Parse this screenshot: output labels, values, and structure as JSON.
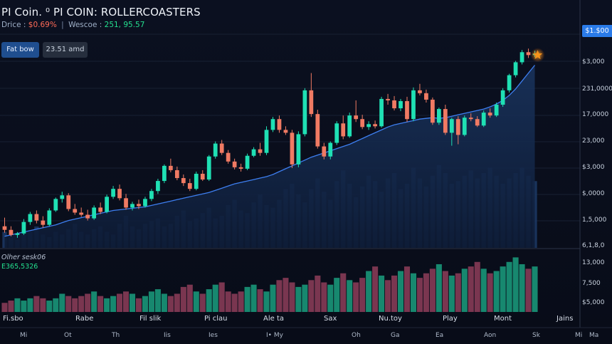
{
  "header": {
    "title": "PI Coin. ⁰ PI COIN: ROLLERCOASTERS",
    "stat_label": "Drice :",
    "stat_change": "$0.69%",
    "stat_sep": "|",
    "stat_label2": "Wescoe :",
    "stat_value2": "251, 95.57"
  },
  "toolbar": {
    "primary_label": "Fat bow",
    "secondary_label": "23.51 amd"
  },
  "price_tag": "$1.$00",
  "volume_panel": {
    "title": "Olher sesk06",
    "value": "E365,5326"
  },
  "y_axis_labels": [
    "$3,000",
    "231,0000",
    "17,0000",
    "23,000",
    "$3,000",
    "$,0000",
    "1,5,000",
    "6,1,8,0"
  ],
  "volume_axis_labels": [
    "13,000",
    "7,500",
    "$5,000"
  ],
  "x_axis_labels": [
    "Fi.sbo",
    "Rabe",
    "Fil slik",
    "Pi clau",
    "Ale ta",
    "Sax",
    "Nu.toy",
    "Play",
    "Mont",
    "Jains"
  ],
  "x_axis_labels2": [
    "Mi",
    "Ot",
    "Th",
    "Iis",
    "Ies",
    "I• My",
    "Oh",
    "Ga",
    "Ea",
    "Aon",
    "Sk",
    "Mi",
    "Ma"
  ],
  "colors": {
    "up": "#1fe0b4",
    "down": "#f07a63",
    "ma_line": "#3d7ef0",
    "volume_area": "#1c3a66",
    "volume_up": "#17886f",
    "volume_down": "#7a3650",
    "marker": "#f7931a"
  },
  "chart_data": {
    "type": "candlestick",
    "candles": [
      {
        "o": 9.0,
        "h": 10.2,
        "l": 8.1,
        "c": 8.5
      },
      {
        "o": 8.5,
        "h": 9.0,
        "l": 7.6,
        "c": 7.8
      },
      {
        "o": 7.8,
        "h": 8.2,
        "l": 7.4,
        "c": 8.0
      },
      {
        "o": 8.0,
        "h": 10.0,
        "l": 7.8,
        "c": 9.6
      },
      {
        "o": 9.6,
        "h": 11.0,
        "l": 9.2,
        "c": 10.7
      },
      {
        "o": 10.7,
        "h": 11.2,
        "l": 9.4,
        "c": 9.8
      },
      {
        "o": 9.8,
        "h": 10.4,
        "l": 8.8,
        "c": 9.2
      },
      {
        "o": 9.2,
        "h": 11.5,
        "l": 9.0,
        "c": 11.2
      },
      {
        "o": 11.2,
        "h": 13.0,
        "l": 11.0,
        "c": 12.8
      },
      {
        "o": 12.8,
        "h": 13.8,
        "l": 12.3,
        "c": 13.3
      },
      {
        "o": 13.3,
        "h": 13.6,
        "l": 11.1,
        "c": 11.4
      },
      {
        "o": 11.4,
        "h": 12.1,
        "l": 10.6,
        "c": 10.9
      },
      {
        "o": 10.9,
        "h": 11.6,
        "l": 10.3,
        "c": 10.6
      },
      {
        "o": 10.6,
        "h": 11.3,
        "l": 9.8,
        "c": 10.1
      },
      {
        "o": 10.1,
        "h": 11.9,
        "l": 9.9,
        "c": 11.6
      },
      {
        "o": 11.6,
        "h": 12.3,
        "l": 10.7,
        "c": 11.0
      },
      {
        "o": 11.0,
        "h": 13.4,
        "l": 10.8,
        "c": 13.1
      },
      {
        "o": 13.1,
        "h": 14.6,
        "l": 12.8,
        "c": 14.2
      },
      {
        "o": 14.2,
        "h": 14.8,
        "l": 12.6,
        "c": 12.9
      },
      {
        "o": 12.9,
        "h": 13.5,
        "l": 11.3,
        "c": 11.6
      },
      {
        "o": 11.6,
        "h": 12.4,
        "l": 11.2,
        "c": 12.1
      },
      {
        "o": 12.1,
        "h": 12.7,
        "l": 11.4,
        "c": 11.8
      },
      {
        "o": 11.8,
        "h": 13.1,
        "l": 11.6,
        "c": 12.8
      },
      {
        "o": 12.8,
        "h": 14.2,
        "l": 12.5,
        "c": 13.9
      },
      {
        "o": 13.9,
        "h": 15.6,
        "l": 13.5,
        "c": 15.3
      },
      {
        "o": 15.3,
        "h": 17.6,
        "l": 15.0,
        "c": 17.4
      },
      {
        "o": 17.4,
        "h": 18.4,
        "l": 16.5,
        "c": 16.8
      },
      {
        "o": 16.8,
        "h": 17.3,
        "l": 15.4,
        "c": 15.7
      },
      {
        "o": 15.7,
        "h": 16.2,
        "l": 14.6,
        "c": 15.0
      },
      {
        "o": 15.0,
        "h": 15.6,
        "l": 13.9,
        "c": 14.2
      },
      {
        "o": 14.2,
        "h": 16.6,
        "l": 14.0,
        "c": 16.3
      },
      {
        "o": 16.3,
        "h": 16.8,
        "l": 15.3,
        "c": 15.5
      },
      {
        "o": 15.5,
        "h": 18.9,
        "l": 15.3,
        "c": 18.7
      },
      {
        "o": 18.7,
        "h": 20.8,
        "l": 18.4,
        "c": 20.5
      },
      {
        "o": 20.5,
        "h": 21.0,
        "l": 18.9,
        "c": 19.2
      },
      {
        "o": 19.2,
        "h": 19.6,
        "l": 17.7,
        "c": 18.0
      },
      {
        "o": 18.0,
        "h": 18.4,
        "l": 16.9,
        "c": 17.2
      },
      {
        "o": 17.2,
        "h": 17.7,
        "l": 16.6,
        "c": 17.0
      },
      {
        "o": 17.0,
        "h": 19.1,
        "l": 16.8,
        "c": 18.8
      },
      {
        "o": 18.8,
        "h": 20.0,
        "l": 18.6,
        "c": 19.7
      },
      {
        "o": 19.7,
        "h": 20.6,
        "l": 18.8,
        "c": 19.2
      },
      {
        "o": 19.2,
        "h": 22.9,
        "l": 18.9,
        "c": 22.4
      },
      {
        "o": 22.4,
        "h": 24.2,
        "l": 22.1,
        "c": 23.9
      },
      {
        "o": 23.9,
        "h": 24.4,
        "l": 22.0,
        "c": 22.4
      },
      {
        "o": 22.4,
        "h": 22.9,
        "l": 21.7,
        "c": 22.0
      },
      {
        "o": 22.0,
        "h": 22.4,
        "l": 17.1,
        "c": 17.6
      },
      {
        "o": 17.6,
        "h": 22.2,
        "l": 17.2,
        "c": 21.8
      },
      {
        "o": 21.8,
        "h": 28.2,
        "l": 21.5,
        "c": 27.9
      },
      {
        "o": 27.9,
        "h": 30.3,
        "l": 24.2,
        "c": 24.6
      },
      {
        "o": 24.6,
        "h": 25.2,
        "l": 19.8,
        "c": 20.1
      },
      {
        "o": 20.1,
        "h": 20.6,
        "l": 18.3,
        "c": 18.7
      },
      {
        "o": 18.7,
        "h": 20.8,
        "l": 18.3,
        "c": 20.6
      },
      {
        "o": 20.6,
        "h": 23.6,
        "l": 20.3,
        "c": 23.3
      },
      {
        "o": 23.3,
        "h": 24.4,
        "l": 21.1,
        "c": 21.5
      },
      {
        "o": 21.5,
        "h": 24.8,
        "l": 21.3,
        "c": 24.4
      },
      {
        "o": 24.4,
        "h": 26.5,
        "l": 23.5,
        "c": 23.9
      },
      {
        "o": 23.9,
        "h": 24.5,
        "l": 22.5,
        "c": 22.8
      },
      {
        "o": 22.8,
        "h": 23.6,
        "l": 22.4,
        "c": 23.2
      },
      {
        "o": 23.2,
        "h": 23.7,
        "l": 22.6,
        "c": 22.9
      },
      {
        "o": 22.9,
        "h": 27.0,
        "l": 22.7,
        "c": 26.7
      },
      {
        "o": 26.7,
        "h": 27.4,
        "l": 25.9,
        "c": 26.5
      },
      {
        "o": 26.5,
        "h": 27.1,
        "l": 25.1,
        "c": 25.4
      },
      {
        "o": 25.4,
        "h": 26.7,
        "l": 25.0,
        "c": 26.4
      },
      {
        "o": 26.4,
        "h": 27.0,
        "l": 23.5,
        "c": 23.9
      },
      {
        "o": 23.9,
        "h": 28.3,
        "l": 23.6,
        "c": 27.9
      },
      {
        "o": 27.9,
        "h": 28.8,
        "l": 27.2,
        "c": 27.5
      },
      {
        "o": 27.5,
        "h": 28.0,
        "l": 26.2,
        "c": 26.6
      },
      {
        "o": 26.6,
        "h": 26.9,
        "l": 23.1,
        "c": 23.4
      },
      {
        "o": 23.4,
        "h": 25.5,
        "l": 23.1,
        "c": 25.3
      },
      {
        "o": 25.3,
        "h": 25.9,
        "l": 21.7,
        "c": 22.0
      },
      {
        "o": 22.0,
        "h": 24.1,
        "l": 20.2,
        "c": 23.9
      },
      {
        "o": 23.9,
        "h": 24.3,
        "l": 20.4,
        "c": 21.7
      },
      {
        "o": 21.7,
        "h": 24.4,
        "l": 21.5,
        "c": 24.1
      },
      {
        "o": 24.1,
        "h": 24.7,
        "l": 23.6,
        "c": 23.9
      },
      {
        "o": 23.9,
        "h": 24.3,
        "l": 22.8,
        "c": 23.0
      },
      {
        "o": 23.0,
        "h": 25.1,
        "l": 22.8,
        "c": 24.8
      },
      {
        "o": 24.8,
        "h": 25.4,
        "l": 24.1,
        "c": 24.4
      },
      {
        "o": 24.4,
        "h": 26.2,
        "l": 24.2,
        "c": 25.9
      },
      {
        "o": 25.9,
        "h": 28.2,
        "l": 25.6,
        "c": 27.9
      },
      {
        "o": 27.9,
        "h": 30.2,
        "l": 27.6,
        "c": 30.0
      },
      {
        "o": 30.0,
        "h": 32.0,
        "l": 29.7,
        "c": 31.8
      },
      {
        "o": 31.8,
        "h": 33.5,
        "l": 31.5,
        "c": 33.2
      },
      {
        "o": 33.2,
        "h": 33.7,
        "l": 32.4,
        "c": 32.8
      },
      {
        "o": 32.8,
        "h": 33.4,
        "l": 32.5,
        "c": 33.0
      }
    ],
    "moving_average": [
      7.6,
      7.8,
      8.0,
      8.2,
      8.4,
      8.6,
      8.8,
      9.0,
      9.2,
      9.5,
      9.8,
      10.0,
      10.2,
      10.4,
      10.6,
      10.8,
      11.0,
      11.2,
      11.3,
      11.4,
      11.5,
      11.6,
      11.7,
      11.9,
      12.1,
      12.3,
      12.5,
      12.7,
      12.9,
      13.1,
      13.3,
      13.5,
      13.7,
      14.0,
      14.3,
      14.6,
      14.9,
      15.1,
      15.3,
      15.5,
      15.7,
      15.9,
      16.2,
      16.6,
      17.0,
      17.4,
      17.8,
      18.2,
      18.6,
      18.9,
      19.2,
      19.5,
      19.8,
      20.1,
      20.4,
      20.8,
      21.2,
      21.6,
      22.0,
      22.4,
      22.8,
      23.1,
      23.3,
      23.5,
      23.7,
      23.9,
      24.0,
      24.1,
      24.0,
      24.1,
      24.3,
      24.5,
      24.7,
      24.9,
      25.1,
      25.3,
      25.6,
      26.0,
      26.5,
      27.2,
      28.1,
      29.2,
      30.3,
      31.4
    ],
    "volume_overlay": [
      6,
      4,
      3,
      5,
      6,
      8,
      5,
      4,
      6,
      5,
      7,
      9,
      6,
      5,
      7,
      8,
      6,
      5,
      9,
      12,
      8,
      7,
      9,
      10,
      11,
      8,
      9,
      12,
      14,
      10,
      11,
      13,
      15,
      11,
      12,
      16,
      18,
      14,
      13,
      17,
      20,
      16,
      15,
      18,
      22,
      24,
      20,
      17,
      22,
      26,
      21,
      18,
      25,
      29,
      24,
      19,
      23,
      27,
      25,
      21,
      26,
      28,
      22,
      24,
      30,
      26,
      23,
      27,
      31,
      28,
      24,
      25,
      27,
      29,
      26,
      28,
      30,
      27,
      24,
      26,
      28,
      30,
      27,
      25
    ],
    "oscillator": [
      4,
      5,
      6,
      5,
      6,
      7,
      6,
      5,
      6,
      8,
      7,
      6,
      7,
      8,
      9,
      7,
      6,
      7,
      8,
      9,
      8,
      6,
      7,
      9,
      10,
      8,
      7,
      8,
      11,
      12,
      9,
      8,
      10,
      12,
      13,
      9,
      8,
      9,
      11,
      12,
      10,
      9,
      12,
      14,
      15,
      13,
      11,
      12,
      14,
      16,
      13,
      12,
      15,
      17,
      14,
      13,
      15,
      18,
      20,
      16,
      14,
      16,
      18,
      20,
      17,
      15,
      17,
      19,
      21,
      18,
      16,
      17,
      19,
      20,
      22,
      19,
      17,
      18,
      20,
      22,
      24,
      21,
      19,
      20
    ],
    "y_range": [
      6,
      36
    ],
    "volume_range": [
      0,
      40
    ],
    "oscillator_range": [
      0,
      26
    ]
  }
}
